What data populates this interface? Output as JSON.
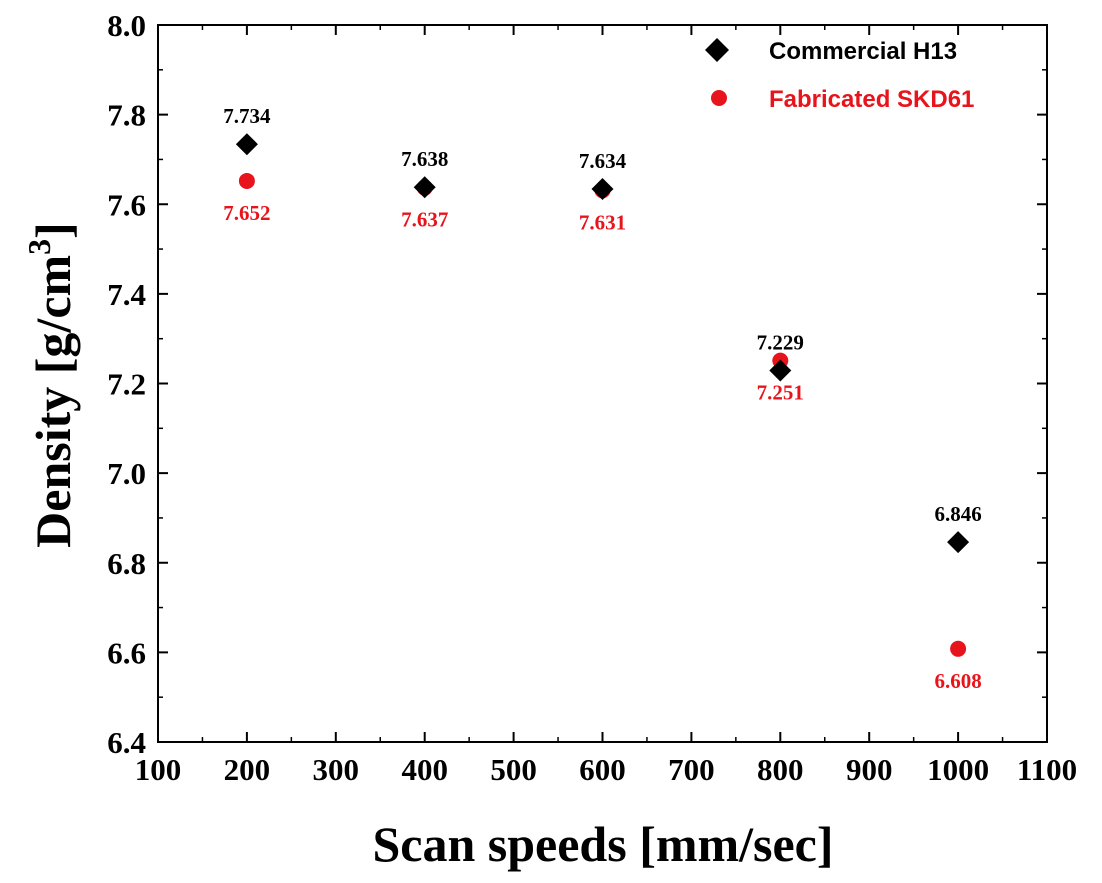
{
  "chart_data": {
    "type": "scatter",
    "xlabel": "Scan speeds [mm/sec]",
    "ylabel": {
      "text": "Density [g/cm",
      "sup": "3",
      "close": "]"
    },
    "xlim": [
      100,
      1100
    ],
    "ylim": [
      6.4,
      8.0
    ],
    "xticks": [
      100,
      200,
      300,
      400,
      500,
      600,
      700,
      800,
      900,
      1000,
      1100
    ],
    "yticks": [
      "6.4",
      "6.6",
      "6.8",
      "7.0",
      "7.2",
      "7.4",
      "7.6",
      "7.8",
      "8.0"
    ],
    "grid": false,
    "legend_position": "top-right",
    "series": [
      {
        "name": "Commercial H13",
        "marker": "diamond",
        "color": "#000000",
        "label_position": "above",
        "x": [
          200,
          400,
          600,
          800,
          1000
        ],
        "y": [
          7.734,
          7.638,
          7.634,
          7.229,
          6.846
        ],
        "labels": [
          "7.734",
          "7.638",
          "7.634",
          "7.229",
          "6.846"
        ]
      },
      {
        "name": "Fabricated SKD61",
        "marker": "circle",
        "color": "#e8141b",
        "label_position": "below",
        "x": [
          200,
          400,
          600,
          800,
          1000
        ],
        "y": [
          7.652,
          7.637,
          7.631,
          7.251,
          6.608
        ],
        "labels": [
          "7.652",
          "7.637",
          "7.631",
          "7.251",
          "6.608"
        ]
      }
    ]
  }
}
